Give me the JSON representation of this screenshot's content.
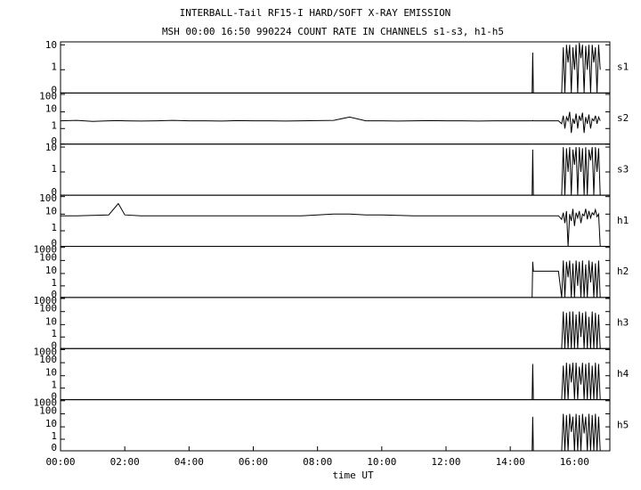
{
  "chart_data": [
    {
      "type": "line",
      "title": "INTERBALL-Tail RF15-I HARD/SOFT X-RAY EMISSION",
      "subtitle": "MSH 00:00 16:50 990224  COUNT RATE IN CHANNELS s1-s3, h1-h5",
      "yscale": "log",
      "xlim": [
        0,
        17.1
      ],
      "ylim": [
        0,
        13
      ],
      "yticks": [
        0,
        1,
        10
      ],
      "x": [
        0,
        0.5,
        1,
        1.5,
        1.8,
        2,
        2.5,
        3,
        3.5,
        4,
        4.5,
        5,
        5.5,
        6,
        6.5,
        7,
        7.5,
        8,
        8.5,
        9,
        9.5,
        10,
        10.5,
        11,
        11.5,
        12,
        12.5,
        13,
        13.5,
        14,
        14.5,
        14.68,
        14.7,
        14.72,
        15.5,
        15.6,
        15.65,
        15.7,
        15.75,
        15.8,
        15.85,
        15.9,
        15.95,
        16,
        16.05,
        16.1,
        16.15,
        16.2,
        16.25,
        16.3,
        16.35,
        16.4,
        16.45,
        16.5,
        16.55,
        16.6,
        16.65,
        16.7,
        16.75,
        16.8
      ],
      "series": [
        {
          "name": "s1",
          "color": "#000000",
          "values": [
            null,
            null,
            null,
            null,
            null,
            null,
            null,
            null,
            null,
            null,
            null,
            null,
            null,
            null,
            null,
            null,
            null,
            null,
            null,
            null,
            null,
            null,
            null,
            null,
            null,
            null,
            null,
            null,
            null,
            null,
            null,
            0,
            5,
            0,
            null,
            0,
            8,
            0,
            10,
            2,
            10,
            0,
            8,
            1,
            10,
            0,
            12,
            3,
            10,
            0,
            9,
            1,
            10,
            0,
            10,
            2,
            8,
            0,
            10,
            1
          ]
        }
      ]
    },
    {
      "type": "line",
      "yscale": "log",
      "xlim": [
        0,
        17.1
      ],
      "ylim": [
        0,
        120
      ],
      "yticks": [
        0,
        1,
        10,
        100
      ],
      "x": [
        0,
        0.5,
        1,
        1.5,
        1.8,
        2,
        2.5,
        3,
        3.5,
        4,
        4.5,
        5,
        5.5,
        6,
        6.5,
        7,
        7.5,
        8,
        8.5,
        9,
        9.5,
        10,
        10.5,
        11,
        11.5,
        12,
        12.5,
        13,
        13.5,
        14,
        14.5,
        14.68,
        14.7,
        14.72,
        15.5,
        15.6,
        15.65,
        15.7,
        15.75,
        15.8,
        15.85,
        15.9,
        15.95,
        16,
        16.05,
        16.1,
        16.15,
        16.2,
        16.25,
        16.3,
        16.35,
        16.4,
        16.45,
        16.5,
        16.55,
        16.6,
        16.65,
        16.7,
        16.75,
        16.8
      ],
      "series": [
        {
          "name": "s2",
          "color": "#000000",
          "values": [
            3,
            3.2,
            2.8,
            3,
            3.1,
            3,
            2.9,
            3,
            3.2,
            3,
            3,
            2.9,
            3.1,
            3,
            3,
            2.9,
            3,
            3.1,
            3.2,
            5,
            3,
            3,
            2.9,
            3,
            3.1,
            3,
            3,
            2.9,
            3,
            3,
            3,
            3,
            3.2,
            3,
            3,
            2,
            6,
            1,
            5,
            3,
            10,
            0.5,
            4,
            2,
            8,
            1,
            6,
            3,
            9,
            0.5,
            5,
            2,
            7,
            1,
            4,
            3,
            6,
            2,
            5,
            3
          ]
        }
      ]
    },
    {
      "type": "line",
      "yscale": "log",
      "xlim": [
        0,
        17.1
      ],
      "ylim": [
        0,
        13
      ],
      "yticks": [
        0,
        1,
        10
      ],
      "x": [
        0,
        0.5,
        1,
        1.5,
        1.8,
        2,
        2.5,
        3,
        3.5,
        4,
        4.5,
        5,
        5.5,
        6,
        6.5,
        7,
        7.5,
        8,
        8.5,
        9,
        9.5,
        10,
        10.5,
        11,
        11.5,
        12,
        12.5,
        13,
        13.5,
        14,
        14.5,
        14.68,
        14.7,
        14.72,
        15.5,
        15.6,
        15.65,
        15.7,
        15.75,
        15.8,
        15.85,
        15.9,
        15.95,
        16,
        16.05,
        16.1,
        16.15,
        16.2,
        16.25,
        16.3,
        16.35,
        16.4,
        16.45,
        16.5,
        16.55,
        16.6,
        16.65,
        16.7,
        16.75,
        16.8
      ],
      "series": [
        {
          "name": "s3",
          "color": "#000000",
          "values": [
            null,
            null,
            null,
            null,
            null,
            null,
            null,
            null,
            null,
            null,
            null,
            null,
            null,
            null,
            null,
            null,
            null,
            null,
            null,
            null,
            null,
            null,
            null,
            null,
            null,
            null,
            null,
            null,
            null,
            null,
            null,
            0,
            8,
            0,
            null,
            0,
            10,
            0,
            9,
            1,
            10,
            0,
            8,
            2,
            10,
            0,
            10,
            1,
            9,
            0,
            10,
            0,
            8,
            3,
            10,
            0,
            10,
            1,
            9,
            0
          ]
        }
      ]
    },
    {
      "type": "line",
      "yscale": "log",
      "xlim": [
        0,
        17.1
      ],
      "ylim": [
        0,
        120
      ],
      "yticks": [
        0,
        1,
        10,
        100
      ],
      "x": [
        0,
        0.5,
        1,
        1.5,
        1.8,
        2,
        2.5,
        3,
        3.5,
        4,
        4.5,
        5,
        5.5,
        6,
        6.5,
        7,
        7.5,
        8,
        8.5,
        9,
        9.5,
        10,
        10.5,
        11,
        11.5,
        12,
        12.5,
        13,
        13.5,
        14,
        14.5,
        14.68,
        14.7,
        14.72,
        15.5,
        15.6,
        15.65,
        15.7,
        15.75,
        15.8,
        15.85,
        15.9,
        15.95,
        16,
        16.05,
        16.1,
        16.15,
        16.2,
        16.25,
        16.3,
        16.35,
        16.4,
        16.45,
        16.5,
        16.55,
        16.6,
        16.65,
        16.7,
        16.75,
        16.8
      ],
      "series": [
        {
          "name": "h1",
          "color": "#000000",
          "values": [
            8,
            8,
            8.5,
            9,
            40,
            9,
            8,
            8,
            8,
            8,
            8,
            8,
            8,
            8,
            8,
            8,
            8,
            9,
            10,
            10,
            9,
            9,
            8.5,
            8,
            8,
            8,
            8,
            8,
            8,
            8,
            8,
            8,
            8,
            8,
            8,
            5,
            12,
            3,
            15,
            0,
            10,
            4,
            20,
            2,
            12,
            6,
            15,
            3,
            10,
            8,
            20,
            5,
            15,
            6,
            12,
            9,
            18,
            7,
            10,
            0
          ]
        }
      ]
    },
    {
      "type": "line",
      "yscale": "log",
      "xlim": [
        0,
        17.1
      ],
      "ylim": [
        0,
        1200
      ],
      "yticks": [
        0,
        1,
        10,
        100,
        1000
      ],
      "x": [
        0,
        0.5,
        1,
        1.5,
        1.8,
        2,
        2.5,
        3,
        3.5,
        4,
        4.5,
        5,
        5.5,
        6,
        6.5,
        7,
        7.5,
        8,
        8.5,
        9,
        9.5,
        10,
        10.5,
        11,
        11.5,
        12,
        12.5,
        13,
        13.5,
        14,
        14.5,
        14.68,
        14.7,
        14.72,
        15.5,
        15.6,
        15.65,
        15.7,
        15.75,
        15.8,
        15.85,
        15.9,
        15.95,
        16,
        16.05,
        16.1,
        16.15,
        16.2,
        16.25,
        16.3,
        16.35,
        16.4,
        16.45,
        16.5,
        16.55,
        16.6,
        16.65,
        16.7,
        16.75,
        16.8
      ],
      "series": [
        {
          "name": "h2",
          "color": "#000000",
          "values": [
            null,
            null,
            null,
            null,
            null,
            null,
            null,
            null,
            null,
            null,
            null,
            null,
            null,
            null,
            null,
            null,
            null,
            null,
            null,
            null,
            null,
            null,
            null,
            null,
            null,
            null,
            null,
            null,
            null,
            null,
            null,
            0,
            80,
            15,
            15,
            0,
            100,
            0,
            80,
            5,
            100,
            0,
            60,
            0,
            100,
            1,
            80,
            0,
            100,
            0,
            50,
            0,
            100,
            2,
            80,
            0,
            60,
            0,
            100,
            0
          ]
        }
      ]
    },
    {
      "type": "line",
      "yscale": "log",
      "xlim": [
        0,
        17.1
      ],
      "ylim": [
        0,
        1200
      ],
      "yticks": [
        0,
        1,
        10,
        100,
        1000
      ],
      "x": [
        0,
        0.5,
        1,
        1.5,
        1.8,
        2,
        2.5,
        3,
        3.5,
        4,
        4.5,
        5,
        5.5,
        6,
        6.5,
        7,
        7.5,
        8,
        8.5,
        9,
        9.5,
        10,
        10.5,
        11,
        11.5,
        12,
        12.5,
        13,
        13.5,
        14,
        14.5,
        14.68,
        14.7,
        14.72,
        15.5,
        15.6,
        15.65,
        15.7,
        15.75,
        15.8,
        15.85,
        15.9,
        15.95,
        16,
        16.05,
        16.1,
        16.15,
        16.2,
        16.25,
        16.3,
        16.35,
        16.4,
        16.45,
        16.5,
        16.55,
        16.6,
        16.65,
        16.7,
        16.75,
        16.8
      ],
      "series": [
        {
          "name": "h3",
          "color": "#000000",
          "values": [
            null,
            null,
            null,
            null,
            null,
            null,
            null,
            null,
            null,
            null,
            null,
            null,
            null,
            null,
            null,
            null,
            null,
            null,
            null,
            null,
            null,
            null,
            null,
            null,
            null,
            null,
            null,
            null,
            null,
            null,
            null,
            null,
            null,
            null,
            null,
            0,
            100,
            0,
            80,
            0,
            100,
            0,
            100,
            0,
            60,
            0,
            100,
            1,
            80,
            0,
            100,
            0,
            40,
            0,
            100,
            0,
            80,
            0,
            60,
            0
          ]
        }
      ]
    },
    {
      "type": "line",
      "yscale": "log",
      "xlim": [
        0,
        17.1
      ],
      "ylim": [
        0,
        1200
      ],
      "yticks": [
        0,
        1,
        10,
        100,
        1000
      ],
      "x": [
        0,
        0.5,
        1,
        1.5,
        1.8,
        2,
        2.5,
        3,
        3.5,
        4,
        4.5,
        5,
        5.5,
        6,
        6.5,
        7,
        7.5,
        8,
        8.5,
        9,
        9.5,
        10,
        10.5,
        11,
        11.5,
        12,
        12.5,
        13,
        13.5,
        14,
        14.5,
        14.68,
        14.7,
        14.72,
        15.5,
        15.6,
        15.65,
        15.7,
        15.75,
        15.8,
        15.85,
        15.9,
        15.95,
        16,
        16.05,
        16.1,
        16.15,
        16.2,
        16.25,
        16.3,
        16.35,
        16.4,
        16.45,
        16.5,
        16.55,
        16.6,
        16.65,
        16.7,
        16.75,
        16.8
      ],
      "series": [
        {
          "name": "h4",
          "color": "#000000",
          "values": [
            null,
            null,
            null,
            null,
            null,
            null,
            null,
            null,
            null,
            null,
            null,
            null,
            null,
            null,
            null,
            null,
            null,
            null,
            null,
            null,
            null,
            null,
            null,
            null,
            null,
            null,
            null,
            null,
            null,
            null,
            null,
            0,
            80,
            0,
            null,
            0,
            60,
            0,
            100,
            0,
            80,
            3,
            100,
            0,
            100,
            0,
            50,
            2,
            100,
            0,
            80,
            0,
            100,
            0,
            60,
            0,
            100,
            0,
            80,
            0
          ]
        }
      ]
    },
    {
      "type": "line",
      "yscale": "log",
      "xlim": [
        0,
        17.1
      ],
      "ylim": [
        0,
        1200
      ],
      "yticks": [
        0,
        1,
        10,
        100,
        1000
      ],
      "x": [
        0,
        0.5,
        1,
        1.5,
        1.8,
        2,
        2.5,
        3,
        3.5,
        4,
        4.5,
        5,
        5.5,
        6,
        6.5,
        7,
        7.5,
        8,
        8.5,
        9,
        9.5,
        10,
        10.5,
        11,
        11.5,
        12,
        12.5,
        13,
        13.5,
        14,
        14.5,
        14.68,
        14.7,
        14.72,
        15.5,
        15.6,
        15.65,
        15.7,
        15.75,
        15.8,
        15.85,
        15.9,
        15.95,
        16,
        16.05,
        16.1,
        16.15,
        16.2,
        16.25,
        16.3,
        16.35,
        16.4,
        16.45,
        16.5,
        16.55,
        16.6,
        16.65,
        16.7,
        16.75,
        16.8
      ],
      "series": [
        {
          "name": "h5",
          "color": "#000000",
          "values": [
            null,
            null,
            null,
            null,
            null,
            null,
            null,
            null,
            null,
            null,
            null,
            null,
            null,
            null,
            null,
            null,
            null,
            null,
            null,
            null,
            null,
            null,
            null,
            null,
            null,
            null,
            null,
            null,
            null,
            null,
            null,
            0,
            60,
            0,
            null,
            0,
            100,
            0,
            80,
            0,
            100,
            4,
            60,
            0,
            100,
            0,
            80,
            0,
            100,
            3,
            60,
            0,
            100,
            0,
            80,
            0,
            100,
            0,
            60,
            0
          ]
        }
      ],
      "xlabel": "time UT",
      "xticks": [
        {
          "value": 0,
          "label": "00:00"
        },
        {
          "value": 2,
          "label": "02:00"
        },
        {
          "value": 4,
          "label": "04:00"
        },
        {
          "value": 6,
          "label": "06:00"
        },
        {
          "value": 8,
          "label": "08:00"
        },
        {
          "value": 10,
          "label": "10:00"
        },
        {
          "value": 12,
          "label": "12:00"
        },
        {
          "value": 14,
          "label": "14:00"
        },
        {
          "value": 16,
          "label": "16:00"
        }
      ]
    }
  ]
}
